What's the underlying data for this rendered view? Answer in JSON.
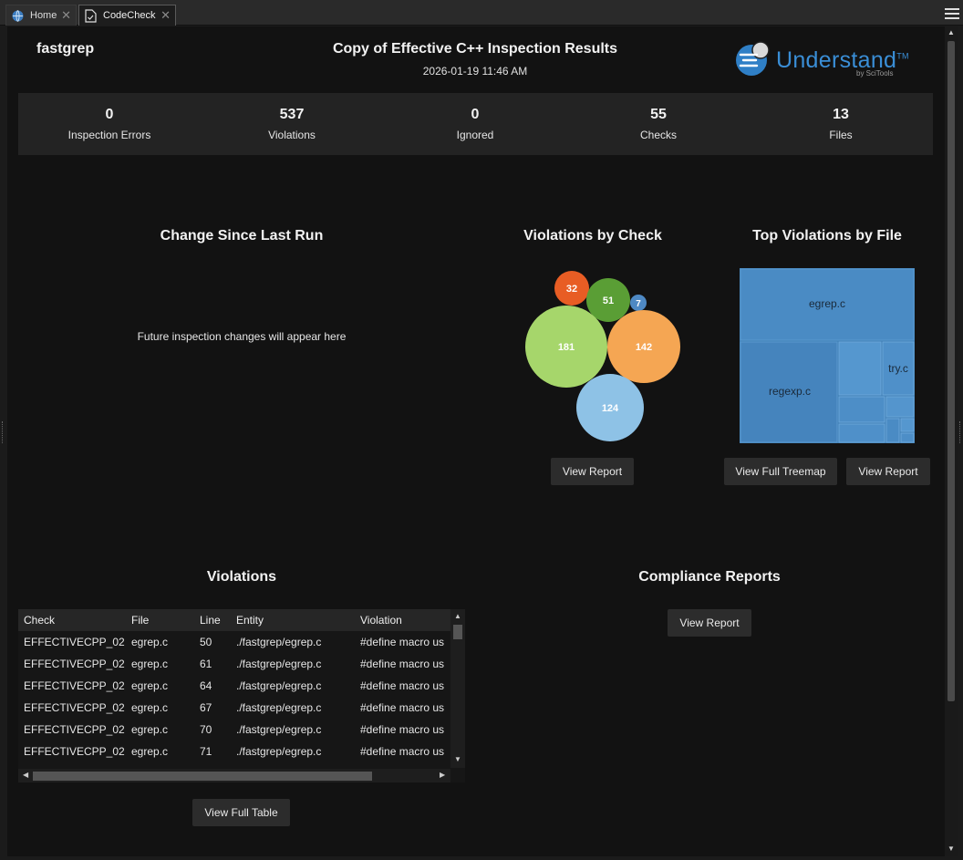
{
  "tabs": [
    {
      "label": "Home",
      "icon": "home-globe-icon"
    },
    {
      "label": "CodeCheck",
      "icon": "document-check-icon"
    }
  ],
  "header": {
    "project": "fastgrep",
    "title": "Copy of Effective C++ Inspection Results",
    "datetime": "2026-01-19 11:46 AM",
    "logo_text": "Understand",
    "logo_tm": "TM",
    "logo_by": "by SciTools"
  },
  "stats": [
    {
      "value": "0",
      "label": "Inspection Errors"
    },
    {
      "value": "537",
      "label": "Violations"
    },
    {
      "value": "0",
      "label": "Ignored"
    },
    {
      "value": "55",
      "label": "Checks"
    },
    {
      "value": "13",
      "label": "Files"
    }
  ],
  "change_section": {
    "title": "Change Since Last Run",
    "placeholder": "Future inspection changes will appear here"
  },
  "violations_by_check": {
    "title": "Violations by Check",
    "bubbles": [
      {
        "value": 32,
        "color": "#e85d24"
      },
      {
        "value": 51,
        "color": "#5a9e35"
      },
      {
        "value": 7,
        "color": "#4e89c4"
      },
      {
        "value": 181,
        "color": "#a6d66b"
      },
      {
        "value": 142,
        "color": "#f5a653"
      },
      {
        "value": 124,
        "color": "#8ec2e6"
      }
    ],
    "button": "View Report"
  },
  "top_violations_by_file": {
    "title": "Top Violations by File",
    "labels": [
      "egrep.c",
      "regexp.c",
      "try.c"
    ],
    "color": "#4a8bc4",
    "buttons": [
      "View Full Treemap",
      "View Report"
    ]
  },
  "violations_table": {
    "title": "Violations",
    "columns": [
      "Check",
      "File",
      "Line",
      "Entity",
      "Violation"
    ],
    "rows": [
      [
        "EFFECTIVECPP_02",
        "egrep.c",
        "50",
        "./fastgrep/egrep.c",
        "#define macro us"
      ],
      [
        "EFFECTIVECPP_02",
        "egrep.c",
        "61",
        "./fastgrep/egrep.c",
        "#define macro us"
      ],
      [
        "EFFECTIVECPP_02",
        "egrep.c",
        "64",
        "./fastgrep/egrep.c",
        "#define macro us"
      ],
      [
        "EFFECTIVECPP_02",
        "egrep.c",
        "67",
        "./fastgrep/egrep.c",
        "#define macro us"
      ],
      [
        "EFFECTIVECPP_02",
        "egrep.c",
        "70",
        "./fastgrep/egrep.c",
        "#define macro us"
      ],
      [
        "EFFECTIVECPP_02",
        "egrep.c",
        "71",
        "./fastgrep/egrep.c",
        "#define macro us"
      ]
    ],
    "button": "View Full Table"
  },
  "compliance": {
    "title": "Compliance Reports",
    "button": "View Report"
  }
}
